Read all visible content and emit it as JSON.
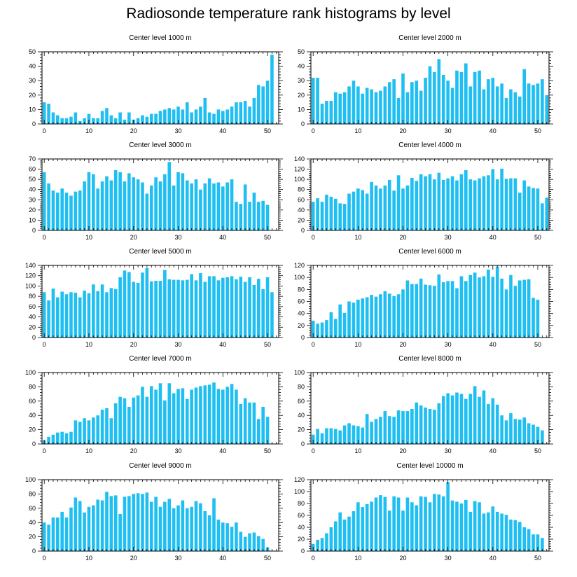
{
  "title": "Radiosonde temperature rank histograms by level",
  "bar_color": "#1fbff2",
  "chart_data": [
    {
      "type": "bar",
      "title": "Center level 1000 m",
      "xlabel": "",
      "ylabel": "",
      "xlim": [
        -0.5,
        52.5
      ],
      "ylim": [
        0,
        50
      ],
      "xticks": [
        0,
        10,
        20,
        30,
        40,
        50
      ],
      "yticks": [
        0,
        10,
        20,
        30,
        40,
        50
      ],
      "values": [
        15,
        14,
        8,
        6,
        4,
        4,
        5,
        8,
        2,
        4,
        7,
        4,
        4,
        9,
        11,
        6,
        4,
        8,
        3,
        8,
        3,
        4,
        6,
        5,
        7,
        7,
        9,
        10,
        11,
        10,
        12,
        10,
        15,
        8,
        10,
        12,
        18,
        8,
        7,
        10,
        9,
        10,
        12,
        15,
        15,
        16,
        12,
        18,
        27,
        26,
        30,
        48
      ]
    },
    {
      "type": "bar",
      "title": "Center level 2000 m",
      "xlabel": "",
      "ylabel": "",
      "xlim": [
        -0.5,
        52.5
      ],
      "ylim": [
        0,
        50
      ],
      "xticks": [
        0,
        10,
        20,
        30,
        40,
        50
      ],
      "yticks": [
        0,
        10,
        20,
        30,
        40,
        50
      ],
      "values": [
        32,
        32,
        14,
        16,
        16,
        22,
        21,
        22,
        26,
        30,
        26,
        21,
        25,
        24,
        22,
        23,
        26,
        29,
        31,
        18,
        35,
        22,
        29,
        30,
        23,
        32,
        40,
        36,
        45,
        34,
        30,
        25,
        37,
        36,
        42,
        26,
        36,
        37,
        24,
        31,
        32,
        26,
        28,
        18,
        24,
        22,
        19,
        38,
        28,
        27,
        28,
        31,
        20
      ]
    },
    {
      "type": "bar",
      "title": "Center level 3000 m",
      "xlabel": "",
      "ylabel": "",
      "xlim": [
        -0.5,
        52.5
      ],
      "ylim": [
        0,
        70
      ],
      "xticks": [
        0,
        10,
        20,
        30,
        40,
        50
      ],
      "yticks": [
        0,
        10,
        20,
        30,
        40,
        50,
        60,
        70
      ],
      "values": [
        57,
        46,
        39,
        37,
        41,
        37,
        34,
        38,
        39,
        48,
        57,
        55,
        41,
        48,
        53,
        49,
        59,
        57,
        48,
        56,
        52,
        50,
        47,
        36,
        44,
        52,
        48,
        55,
        67,
        44,
        57,
        56,
        49,
        46,
        50,
        40,
        46,
        51,
        46,
        47,
        43,
        47,
        50,
        28,
        26,
        45,
        28,
        37,
        28,
        29,
        25
      ]
    },
    {
      "type": "bar",
      "title": "Center level 4000 m",
      "xlabel": "",
      "ylabel": "",
      "xlim": [
        -0.5,
        52.5
      ],
      "ylim": [
        0,
        140
      ],
      "xticks": [
        0,
        10,
        20,
        30,
        40,
        50
      ],
      "yticks": [
        0,
        20,
        40,
        60,
        80,
        100,
        120,
        140
      ],
      "values": [
        56,
        63,
        56,
        70,
        66,
        62,
        53,
        52,
        72,
        76,
        82,
        79,
        72,
        95,
        88,
        82,
        88,
        99,
        78,
        108,
        82,
        88,
        103,
        97,
        110,
        106,
        110,
        100,
        113,
        99,
        102,
        106,
        98,
        110,
        118,
        100,
        98,
        102,
        106,
        108,
        120,
        100,
        121,
        101,
        102,
        102,
        74,
        98,
        86,
        83,
        82,
        53,
        64
      ]
    },
    {
      "type": "bar",
      "title": "Center level 5000 m",
      "xlabel": "",
      "ylabel": "",
      "xlim": [
        -0.5,
        52.5
      ],
      "ylim": [
        0,
        140
      ],
      "xticks": [
        0,
        10,
        20,
        30,
        40,
        50
      ],
      "yticks": [
        0,
        20,
        40,
        60,
        80,
        100,
        120,
        140
      ],
      "values": [
        88,
        72,
        95,
        78,
        89,
        84,
        88,
        87,
        78,
        91,
        86,
        103,
        90,
        103,
        88,
        96,
        94,
        117,
        130,
        127,
        108,
        106,
        126,
        135,
        109,
        110,
        110,
        131,
        113,
        112,
        112,
        111,
        112,
        123,
        111,
        125,
        108,
        119,
        119,
        111,
        116,
        117,
        119,
        113,
        118,
        108,
        117,
        102,
        114,
        94,
        117,
        88
      ]
    },
    {
      "type": "bar",
      "title": "Center level 6000 m",
      "xlabel": "",
      "ylabel": "",
      "xlim": [
        -0.5,
        52.5
      ],
      "ylim": [
        0,
        120
      ],
      "xticks": [
        0,
        10,
        20,
        30,
        40,
        50
      ],
      "yticks": [
        0,
        20,
        40,
        60,
        80,
        100,
        120
      ],
      "values": [
        28,
        23,
        25,
        29,
        42,
        31,
        55,
        41,
        60,
        58,
        63,
        65,
        67,
        71,
        68,
        72,
        77,
        73,
        69,
        72,
        80,
        95,
        89,
        89,
        98,
        88,
        87,
        86,
        105,
        92,
        94,
        94,
        82,
        102,
        94,
        104,
        108,
        100,
        102,
        113,
        101,
        118,
        98,
        80,
        104,
        86,
        95,
        96,
        97,
        66,
        63
      ]
    },
    {
      "type": "bar",
      "title": "Center level 7000 m",
      "xlabel": "",
      "ylabel": "",
      "xlim": [
        -0.5,
        52.5
      ],
      "ylim": [
        0,
        100
      ],
      "xticks": [
        0,
        10,
        20,
        30,
        40,
        50
      ],
      "yticks": [
        0,
        20,
        40,
        60,
        80,
        100
      ],
      "values": [
        5,
        10,
        13,
        16,
        17,
        15,
        17,
        33,
        31,
        36,
        33,
        37,
        40,
        48,
        50,
        36,
        57,
        66,
        64,
        52,
        65,
        68,
        80,
        66,
        81,
        76,
        85,
        61,
        85,
        71,
        77,
        78,
        63,
        76,
        79,
        81,
        82,
        83,
        86,
        77,
        76,
        80,
        84,
        76,
        56,
        64,
        58,
        58,
        35,
        52,
        38
      ]
    },
    {
      "type": "bar",
      "title": "Center level 8000 m",
      "xlabel": "",
      "ylabel": "",
      "xlim": [
        -0.5,
        52.5
      ],
      "ylim": [
        0,
        100
      ],
      "xticks": [
        0,
        10,
        20,
        30,
        40,
        50
      ],
      "yticks": [
        0,
        20,
        40,
        60,
        80,
        100
      ],
      "values": [
        13,
        21,
        15,
        22,
        22,
        21,
        19,
        26,
        29,
        26,
        25,
        23,
        42,
        31,
        35,
        38,
        46,
        39,
        38,
        47,
        46,
        46,
        49,
        58,
        54,
        51,
        49,
        48,
        57,
        67,
        71,
        68,
        72,
        70,
        63,
        70,
        81,
        66,
        75,
        56,
        64,
        55,
        40,
        33,
        43,
        35,
        34,
        37,
        29,
        27,
        24,
        19
      ]
    },
    {
      "type": "bar",
      "title": "Center level 9000 m",
      "xlabel": "",
      "ylabel": "",
      "xlim": [
        -0.5,
        52.5
      ],
      "ylim": [
        0,
        100
      ],
      "xticks": [
        0,
        10,
        20,
        30,
        40,
        50
      ],
      "yticks": [
        0,
        20,
        40,
        60,
        80,
        100
      ],
      "values": [
        40,
        37,
        47,
        47,
        55,
        47,
        61,
        75,
        70,
        54,
        62,
        64,
        72,
        71,
        83,
        77,
        78,
        52,
        76,
        77,
        80,
        81,
        80,
        82,
        69,
        76,
        62,
        69,
        73,
        60,
        64,
        71,
        60,
        62,
        70,
        67,
        56,
        50,
        74,
        44,
        40,
        39,
        34,
        40,
        27,
        20,
        25,
        26,
        21,
        17,
        5
      ]
    },
    {
      "type": "bar",
      "title": "Center level 10000 m",
      "xlabel": "",
      "ylabel": "",
      "xlim": [
        -0.5,
        52.5
      ],
      "ylim": [
        0,
        120
      ],
      "xticks": [
        0,
        10,
        20,
        30,
        40,
        50
      ],
      "yticks": [
        0,
        20,
        40,
        60,
        80,
        100,
        120
      ],
      "values": [
        12,
        19,
        22,
        30,
        40,
        50,
        65,
        53,
        58,
        67,
        82,
        74,
        79,
        83,
        90,
        94,
        91,
        68,
        92,
        90,
        68,
        90,
        82,
        77,
        92,
        91,
        82,
        96,
        95,
        92,
        116,
        85,
        83,
        80,
        86,
        66,
        84,
        82,
        63,
        65,
        75,
        66,
        63,
        61,
        53,
        52,
        49,
        40,
        37,
        28,
        28,
        22
      ]
    }
  ]
}
